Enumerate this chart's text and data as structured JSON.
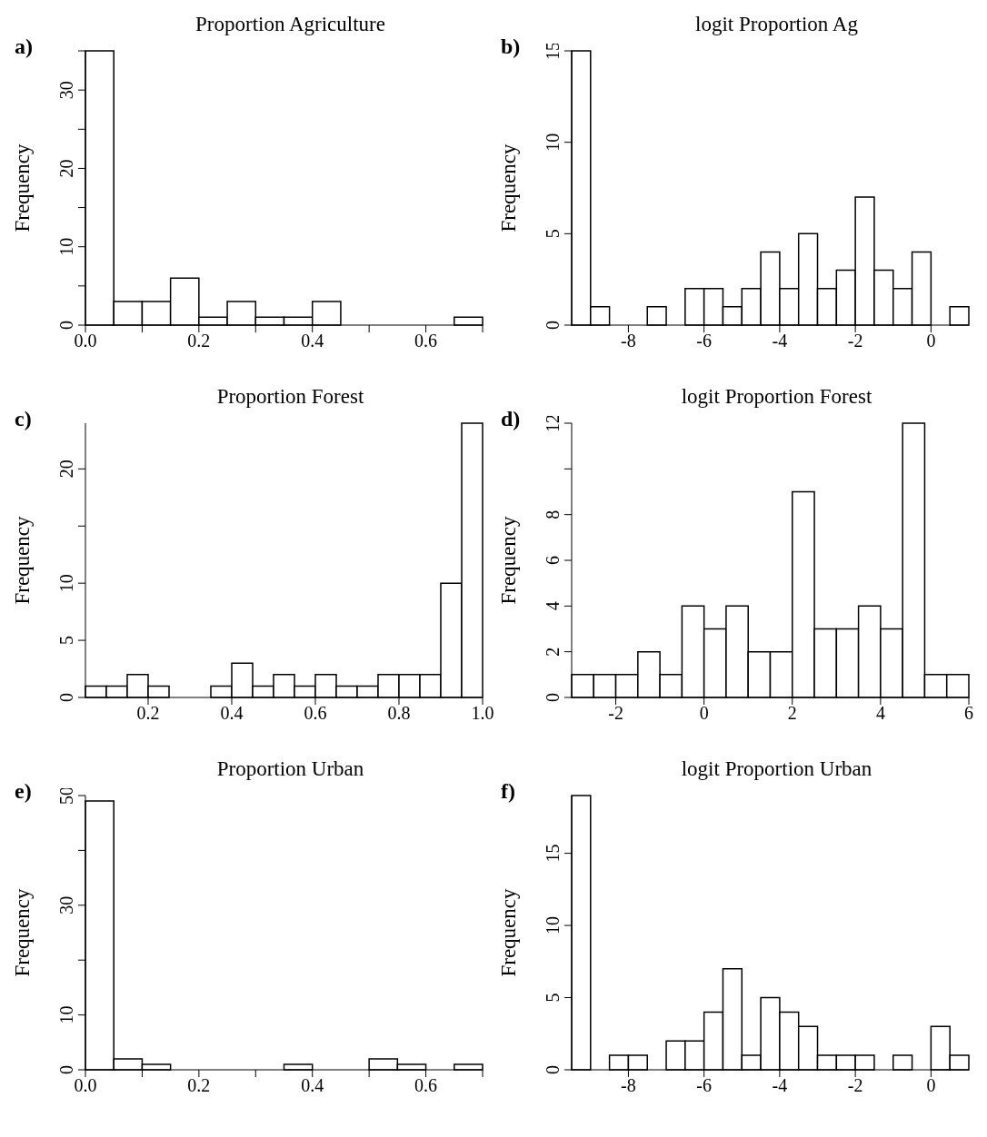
{
  "chart_data": [
    {
      "type": "histogram",
      "title": "Proportion Agriculture",
      "ylabel": "Frequency",
      "annotations": [
        "a)"
      ],
      "color": "#ffffff",
      "bins": [
        0,
        0.05,
        0.1,
        0.15,
        0.2,
        0.25,
        0.3,
        0.35,
        0.4,
        0.45,
        0.5,
        0.55,
        0.6,
        0.65,
        0.7
      ],
      "values": [
        35,
        3,
        3,
        6,
        1,
        3,
        1,
        1,
        3,
        0,
        0,
        0,
        0,
        1
      ],
      "xlim": [
        0,
        0.7
      ],
      "xticks": [
        {
          "value": 0,
          "label": "0.0"
        },
        {
          "value": 0.1,
          "label": null
        },
        0.2,
        {
          "value": 0.3,
          "label": null
        },
        0.4,
        {
          "value": 0.5,
          "label": null
        },
        0.6,
        {
          "value": 0.7,
          "label": null
        }
      ],
      "ylim": [
        0,
        35
      ],
      "yticks": [
        0,
        {
          "value": 5,
          "label": null
        },
        10,
        {
          "value": 15,
          "label": null
        },
        20,
        {
          "value": 25,
          "label": null
        },
        30,
        {
          "value": 35,
          "label": null
        }
      ]
    },
    {
      "type": "histogram",
      "title": "logit Proportion Ag",
      "ylabel": "Frequency",
      "annotations": [
        "b)"
      ],
      "color": "#ffffff",
      "bins": [
        -9.5,
        -9,
        -8.5,
        -8,
        -7.5,
        -7,
        -6.5,
        -6,
        -5.5,
        -5,
        -4.5,
        -4,
        -3.5,
        -3,
        -2.5,
        -2,
        -1.5,
        -1,
        -0.5,
        0,
        0.5,
        1
      ],
      "values": [
        15,
        1,
        0,
        0,
        1,
        0,
        2,
        2,
        1,
        2,
        4,
        2,
        5,
        2,
        3,
        7,
        3,
        2,
        4,
        0,
        1
      ],
      "xlim": [
        -9.5,
        1
      ],
      "xticks": [
        -8,
        -6,
        -4,
        -2,
        0
      ],
      "ylim": [
        0,
        15
      ],
      "yticks": [
        0,
        5,
        10,
        15
      ]
    },
    {
      "type": "histogram",
      "title": "Proportion Forest",
      "ylabel": "Frequency",
      "annotations": [
        "c)"
      ],
      "color": "#ffffff",
      "bins": [
        0.05,
        0.1,
        0.15,
        0.2,
        0.25,
        0.3,
        0.35,
        0.4,
        0.45,
        0.5,
        0.55,
        0.6,
        0.65,
        0.7,
        0.75,
        0.8,
        0.85,
        0.9,
        0.95,
        1
      ],
      "values": [
        1,
        1,
        2,
        1,
        0,
        0,
        1,
        3,
        1,
        2,
        1,
        2,
        1,
        1,
        2,
        2,
        2,
        10,
        24
      ],
      "xlim": [
        0.05,
        1
      ],
      "xticks": [
        0.2,
        0.4,
        0.6,
        0.8,
        {
          "value": 1,
          "label": "1.0"
        }
      ],
      "ylim": [
        0,
        24
      ],
      "yticks": [
        0,
        5,
        10,
        {
          "value": 15,
          "label": null
        },
        20
      ]
    },
    {
      "type": "histogram",
      "title": "logit Proportion Forest",
      "ylabel": "Frequency",
      "annotations": [
        "d)"
      ],
      "color": "#ffffff",
      "bins": [
        -3,
        -2.5,
        -2,
        -1.5,
        -1,
        -0.5,
        0,
        0.5,
        1,
        1.5,
        2,
        2.5,
        3,
        3.5,
        4,
        4.5,
        5,
        5.5,
        6
      ],
      "values": [
        1,
        1,
        1,
        2,
        1,
        4,
        3,
        4,
        2,
        2,
        9,
        3,
        3,
        4,
        3,
        12,
        1,
        1
      ],
      "xlim": [
        -3,
        6
      ],
      "xticks": [
        -2,
        0,
        2,
        4,
        6
      ],
      "ylim": [
        0,
        12
      ],
      "yticks": [
        0,
        2,
        4,
        6,
        8,
        {
          "value": 10,
          "label": null
        },
        12
      ]
    },
    {
      "type": "histogram",
      "title": "Proportion Urban",
      "ylabel": "Frequency",
      "annotations": [
        "e)"
      ],
      "color": "#ffffff",
      "bins": [
        0,
        0.05,
        0.1,
        0.15,
        0.2,
        0.25,
        0.3,
        0.35,
        0.4,
        0.45,
        0.5,
        0.55,
        0.6,
        0.65,
        0.7
      ],
      "values": [
        49,
        2,
        1,
        0,
        0,
        0,
        0,
        1,
        0,
        0,
        2,
        1,
        0,
        1
      ],
      "xlim": [
        0,
        0.7
      ],
      "xticks": [
        {
          "value": 0,
          "label": "0.0"
        },
        {
          "value": 0.1,
          "label": null
        },
        0.2,
        {
          "value": 0.3,
          "label": null
        },
        0.4,
        {
          "value": 0.5,
          "label": null
        },
        0.6,
        {
          "value": 0.7,
          "label": null
        }
      ],
      "ylim": [
        0,
        50
      ],
      "yticks": [
        0,
        10,
        {
          "value": 20,
          "label": null
        },
        30,
        {
          "value": 40,
          "label": null
        },
        50
      ]
    },
    {
      "type": "histogram",
      "title": "logit Proportion Urban",
      "ylabel": "Frequency",
      "annotations": [
        "f)"
      ],
      "color": "#ffffff",
      "bins": [
        -9.5,
        -9,
        -8.5,
        -8,
        -7.5,
        -7,
        -6.5,
        -6,
        -5.5,
        -5,
        -4.5,
        -4,
        -3.5,
        -3,
        -2.5,
        -2,
        -1.5,
        -1,
        -0.5,
        0,
        0.5,
        1
      ],
      "values": [
        19,
        0,
        1,
        1,
        0,
        2,
        2,
        4,
        7,
        1,
        5,
        4,
        3,
        1,
        1,
        1,
        0,
        1,
        0,
        3,
        1
      ],
      "xlim": [
        -9.5,
        1
      ],
      "xticks": [
        -8,
        -6,
        -4,
        -2,
        0
      ],
      "ylim": [
        0,
        19
      ],
      "yticks": [
        0,
        5,
        10,
        15
      ]
    }
  ]
}
